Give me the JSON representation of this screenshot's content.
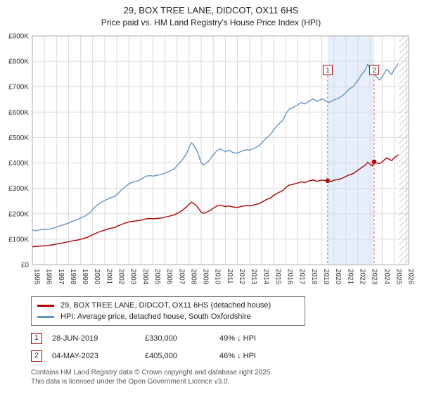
{
  "chart_data": {
    "type": "line",
    "title": "29, BOX TREE LANE, DIDCOT, OX11 6HS",
    "subtitle": "Price paid vs. HM Land Registry's House Price Index (HPI)",
    "x_range": [
      1995,
      2026.2
    ],
    "y_range": [
      0,
      900000
    ],
    "x_ticks": [
      1995,
      1996,
      1997,
      1998,
      1999,
      2000,
      2001,
      2002,
      2003,
      2004,
      2005,
      2006,
      2007,
      2008,
      2009,
      2010,
      2011,
      2012,
      2013,
      2014,
      2015,
      2016,
      2017,
      2018,
      2019,
      2020,
      2021,
      2022,
      2023,
      2024,
      2025,
      2026
    ],
    "y_tick_values": [
      0,
      100000,
      200000,
      300000,
      400000,
      500000,
      600000,
      700000,
      800000,
      900000
    ],
    "y_tick_labels": [
      "£0",
      "£100K",
      "£200K",
      "£300K",
      "£400K",
      "£500K",
      "£600K",
      "£700K",
      "£800K",
      "£900K"
    ],
    "hatch_start": 2025.4,
    "grid": true,
    "legend_position": "bottom",
    "series": [
      {
        "name": "29, BOX TREE LANE, DIDCOT, OX11 6HS (detached house)",
        "color": "#b30000",
        "points": [
          [
            1995,
            70000
          ],
          [
            1995.4,
            72000
          ],
          [
            1995.8,
            73000
          ],
          [
            1996,
            74000
          ],
          [
            1996.4,
            76000
          ],
          [
            1996.8,
            79000
          ],
          [
            1997,
            81000
          ],
          [
            1997.4,
            84000
          ],
          [
            1997.8,
            88000
          ],
          [
            1998,
            90000
          ],
          [
            1998.4,
            94000
          ],
          [
            1998.8,
            97000
          ],
          [
            1999,
            100000
          ],
          [
            1999.4,
            105000
          ],
          [
            1999.8,
            112000
          ],
          [
            2000,
            118000
          ],
          [
            2000.4,
            126000
          ],
          [
            2000.8,
            133000
          ],
          [
            2001,
            136000
          ],
          [
            2001.4,
            142000
          ],
          [
            2001.8,
            146000
          ],
          [
            2002,
            150000
          ],
          [
            2002.4,
            158000
          ],
          [
            2002.8,
            165000
          ],
          [
            2003,
            168000
          ],
          [
            2003.4,
            171000
          ],
          [
            2003.8,
            173000
          ],
          [
            2004,
            175000
          ],
          [
            2004.4,
            180000
          ],
          [
            2004.8,
            181000
          ],
          [
            2005,
            180000
          ],
          [
            2005.4,
            182000
          ],
          [
            2005.8,
            184000
          ],
          [
            2006,
            187000
          ],
          [
            2006.4,
            191000
          ],
          [
            2006.8,
            196000
          ],
          [
            2007,
            201000
          ],
          [
            2007.4,
            212000
          ],
          [
            2007.8,
            228000
          ],
          [
            2008,
            238000
          ],
          [
            2008.2,
            246000
          ],
          [
            2008.4,
            240000
          ],
          [
            2008.6,
            232000
          ],
          [
            2008.8,
            220000
          ],
          [
            2009,
            206000
          ],
          [
            2009.2,
            202000
          ],
          [
            2009.4,
            205000
          ],
          [
            2009.7,
            212000
          ],
          [
            2010,
            222000
          ],
          [
            2010.3,
            230000
          ],
          [
            2010.6,
            234000
          ],
          [
            2011,
            228000
          ],
          [
            2011.3,
            231000
          ],
          [
            2011.6,
            227000
          ],
          [
            2012,
            225000
          ],
          [
            2012.4,
            230000
          ],
          [
            2012.8,
            232000
          ],
          [
            2013,
            231000
          ],
          [
            2013.4,
            235000
          ],
          [
            2013.8,
            240000
          ],
          [
            2014,
            245000
          ],
          [
            2014.4,
            256000
          ],
          [
            2014.8,
            264000
          ],
          [
            2015,
            272000
          ],
          [
            2015.4,
            283000
          ],
          [
            2015.8,
            292000
          ],
          [
            2016,
            303000
          ],
          [
            2016.3,
            313000
          ],
          [
            2016.6,
            316000
          ],
          [
            2017,
            321000
          ],
          [
            2017.3,
            326000
          ],
          [
            2017.6,
            323000
          ],
          [
            2018,
            330000
          ],
          [
            2018.3,
            333000
          ],
          [
            2018.6,
            328000
          ],
          [
            2019,
            333000
          ],
          [
            2019.3,
            330000
          ],
          [
            2019.49,
            330000
          ],
          [
            2019.8,
            327000
          ],
          [
            2020,
            332000
          ],
          [
            2020.4,
            335000
          ],
          [
            2020.8,
            342000
          ],
          [
            2021,
            347000
          ],
          [
            2021.3,
            354000
          ],
          [
            2021.6,
            358000
          ],
          [
            2022,
            371000
          ],
          [
            2022.3,
            382000
          ],
          [
            2022.6,
            391000
          ],
          [
            2022.8,
            403000
          ],
          [
            2023,
            395000
          ],
          [
            2023.2,
            388000
          ],
          [
            2023.34,
            405000
          ],
          [
            2023.5,
            400000
          ],
          [
            2023.8,
            398000
          ],
          [
            2024,
            404000
          ],
          [
            2024.2,
            413000
          ],
          [
            2024.4,
            420000
          ],
          [
            2024.6,
            414000
          ],
          [
            2024.8,
            409000
          ],
          [
            2025,
            420000
          ],
          [
            2025.2,
            427000
          ],
          [
            2025.35,
            433000
          ]
        ]
      },
      {
        "name": "HPI: Average price, detached house, South Oxfordshire",
        "color": "#6694c8",
        "points": [
          [
            1995,
            136000
          ],
          [
            1995.3,
            133000
          ],
          [
            1995.6,
            137000
          ],
          [
            1996,
            138000
          ],
          [
            1996.4,
            140000
          ],
          [
            1996.8,
            144000
          ],
          [
            1997,
            148000
          ],
          [
            1997.4,
            154000
          ],
          [
            1997.8,
            160000
          ],
          [
            1998,
            164000
          ],
          [
            1998.4,
            172000
          ],
          [
            1998.8,
            178000
          ],
          [
            1999,
            183000
          ],
          [
            1999.4,
            192000
          ],
          [
            1999.8,
            205000
          ],
          [
            2000,
            218000
          ],
          [
            2000.4,
            235000
          ],
          [
            2000.8,
            248000
          ],
          [
            2001,
            252000
          ],
          [
            2001.4,
            262000
          ],
          [
            2001.8,
            268000
          ],
          [
            2002,
            275000
          ],
          [
            2002.4,
            295000
          ],
          [
            2002.8,
            310000
          ],
          [
            2003,
            318000
          ],
          [
            2003.4,
            326000
          ],
          [
            2003.8,
            330000
          ],
          [
            2004,
            336000
          ],
          [
            2004.4,
            348000
          ],
          [
            2004.8,
            350000
          ],
          [
            2005,
            348000
          ],
          [
            2005.4,
            352000
          ],
          [
            2005.8,
            356000
          ],
          [
            2006,
            360000
          ],
          [
            2006.4,
            368000
          ],
          [
            2006.8,
            378000
          ],
          [
            2007,
            390000
          ],
          [
            2007.4,
            410000
          ],
          [
            2007.8,
            438000
          ],
          [
            2008,
            462000
          ],
          [
            2008.2,
            480000
          ],
          [
            2008.4,
            468000
          ],
          [
            2008.6,
            452000
          ],
          [
            2008.8,
            430000
          ],
          [
            2009,
            400000
          ],
          [
            2009.2,
            392000
          ],
          [
            2009.4,
            398000
          ],
          [
            2009.7,
            412000
          ],
          [
            2010,
            432000
          ],
          [
            2010.3,
            448000
          ],
          [
            2010.6,
            455000
          ],
          [
            2011,
            444000
          ],
          [
            2011.3,
            450000
          ],
          [
            2011.6,
            442000
          ],
          [
            2012,
            438000
          ],
          [
            2012.4,
            448000
          ],
          [
            2012.8,
            452000
          ],
          [
            2013,
            450000
          ],
          [
            2013.4,
            458000
          ],
          [
            2013.8,
            468000
          ],
          [
            2014,
            478000
          ],
          [
            2014.4,
            498000
          ],
          [
            2014.8,
            515000
          ],
          [
            2015,
            530000
          ],
          [
            2015.4,
            552000
          ],
          [
            2015.8,
            570000
          ],
          [
            2016,
            592000
          ],
          [
            2016.3,
            612000
          ],
          [
            2016.6,
            618000
          ],
          [
            2017,
            628000
          ],
          [
            2017.3,
            638000
          ],
          [
            2017.6,
            632000
          ],
          [
            2018,
            645000
          ],
          [
            2018.3,
            652000
          ],
          [
            2018.6,
            642000
          ],
          [
            2019,
            652000
          ],
          [
            2019.3,
            645000
          ],
          [
            2019.6,
            638000
          ],
          [
            2020,
            648000
          ],
          [
            2020.4,
            655000
          ],
          [
            2020.8,
            668000
          ],
          [
            2021,
            678000
          ],
          [
            2021.3,
            692000
          ],
          [
            2021.6,
            700000
          ],
          [
            2022,
            725000
          ],
          [
            2022.3,
            748000
          ],
          [
            2022.6,
            765000
          ],
          [
            2022.8,
            788000
          ],
          [
            2023,
            772000
          ],
          [
            2023.2,
            758000
          ],
          [
            2023.5,
            742000
          ],
          [
            2023.8,
            726000
          ],
          [
            2024,
            738000
          ],
          [
            2024.2,
            755000
          ],
          [
            2024.4,
            768000
          ],
          [
            2024.6,
            758000
          ],
          [
            2024.8,
            748000
          ],
          [
            2025,
            768000
          ],
          [
            2025.2,
            780000
          ],
          [
            2025.35,
            792000
          ]
        ]
      }
    ],
    "sales": [
      {
        "n": "1",
        "x": 2019.49,
        "y": 330000,
        "date": "28-JUN-2019",
        "price": "£330,000",
        "hpi": "49% ↓ HPI"
      },
      {
        "n": "2",
        "x": 2023.34,
        "y": 405000,
        "date": "04-MAY-2023",
        "price": "£405,000",
        "hpi": "46% ↓ HPI"
      }
    ]
  },
  "footer": {
    "line1": "Contains HM Land Registry data © Crown copyright and database right 2025.",
    "line2": "This data is licensed under the Open Government Licence v3.0."
  }
}
